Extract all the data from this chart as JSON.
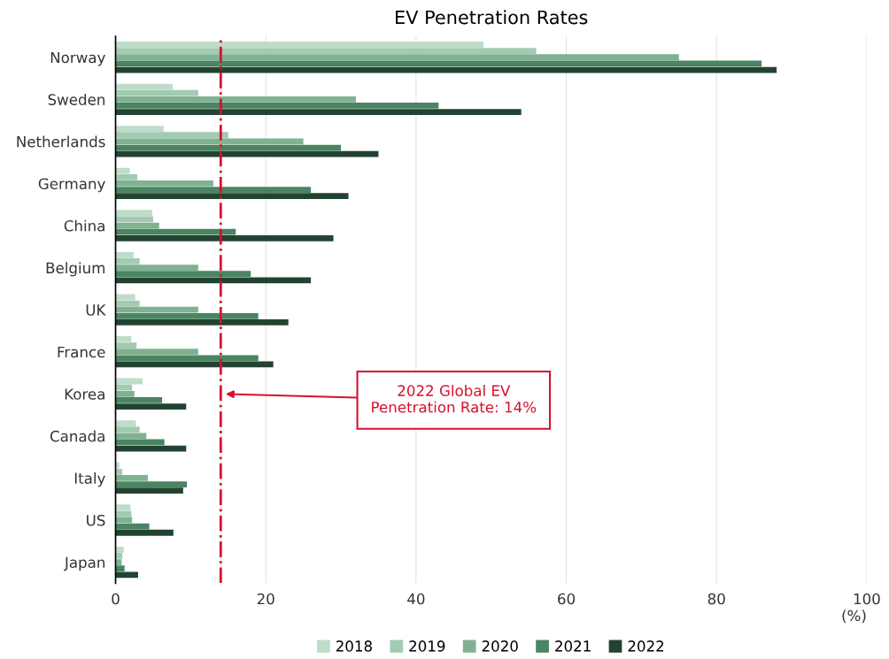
{
  "chart_data": {
    "type": "bar",
    "orientation": "horizontal",
    "title": "EV Penetration Rates",
    "xlabel": "(%)",
    "categories": [
      "Norway",
      "Sweden",
      "Netherlands",
      "Germany",
      "China",
      "Belgium",
      "UK",
      "France",
      "Korea",
      "Canada",
      "Italy",
      "US",
      "Japan"
    ],
    "series": [
      {
        "name": "2018",
        "color": "#bfdccb",
        "values": [
          49,
          7.6,
          6.4,
          1.9,
          4.9,
          2.4,
          2.6,
          2.1,
          3.6,
          2.7,
          0.5,
          2.0,
          1.1
        ]
      },
      {
        "name": "2019",
        "color": "#a3cab2",
        "values": [
          56,
          11,
          15,
          2.9,
          5.0,
          3.2,
          3.2,
          2.8,
          2.2,
          3.2,
          0.9,
          2.1,
          0.9
        ]
      },
      {
        "name": "2020",
        "color": "#7fb291",
        "values": [
          75,
          32,
          25,
          13,
          5.8,
          11,
          11,
          11,
          2.5,
          4.1,
          4.3,
          2.2,
          0.8
        ]
      },
      {
        "name": "2021",
        "color": "#4b8462",
        "values": [
          86,
          43,
          30,
          26,
          16,
          18,
          19,
          19,
          6.2,
          6.5,
          9.5,
          4.5,
          1.2
        ]
      },
      {
        "name": "2022",
        "color": "#234332",
        "values": [
          88,
          54,
          35,
          31,
          29,
          26,
          23,
          21,
          9.4,
          9.4,
          9.0,
          7.7,
          3.0
        ]
      }
    ],
    "xlim": [
      0,
      100
    ],
    "xticks": [
      0,
      20,
      40,
      60,
      80,
      100
    ],
    "grid": "x",
    "legend": "bottom",
    "ref_lines": [
      {
        "axis": "x",
        "value": 14,
        "label": "2022 Global EV\nPenetration Rate: 14%",
        "color": "#d7102f",
        "line_style": "dashdot"
      }
    ]
  }
}
